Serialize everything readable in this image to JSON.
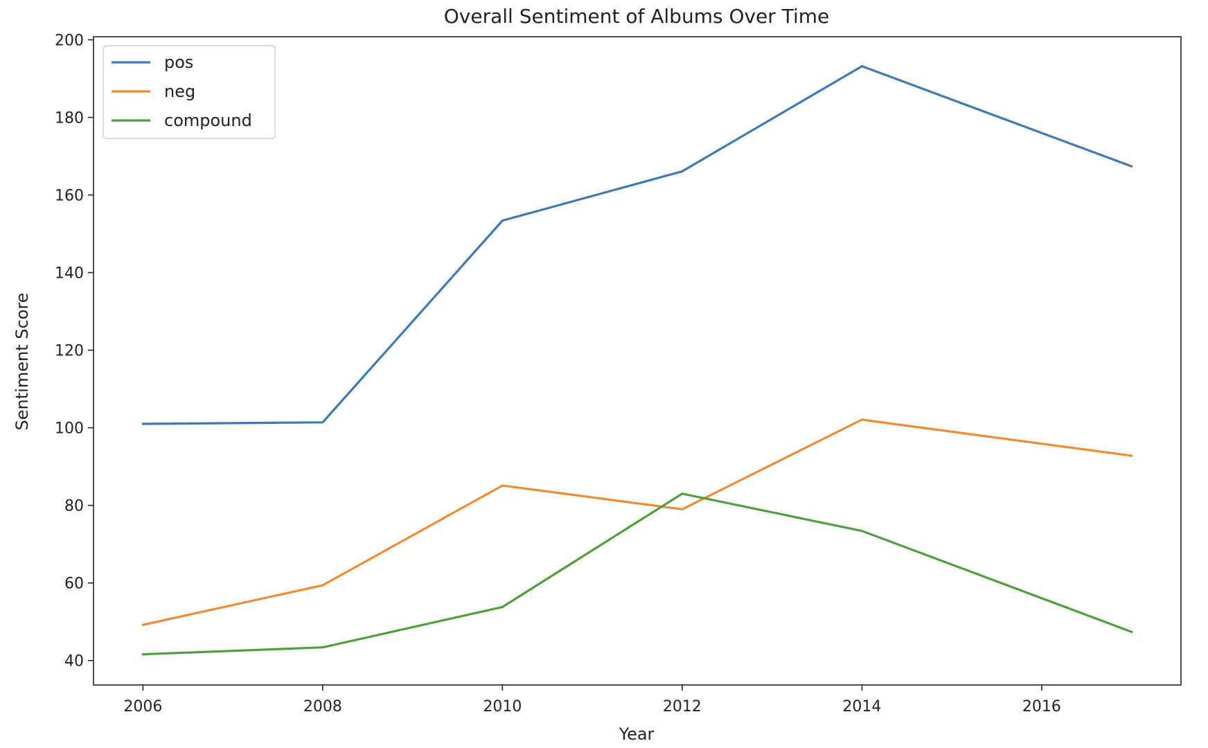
{
  "chart_data": {
    "type": "line",
    "title": "Overall Sentiment of Albums Over Time",
    "xlabel": "Year",
    "ylabel": "Sentiment Score",
    "x": [
      2006,
      2008,
      2010,
      2012,
      2014,
      2017
    ],
    "xticks": [
      2006,
      2008,
      2010,
      2012,
      2014,
      2016
    ],
    "yticks": [
      40,
      60,
      80,
      100,
      120,
      140,
      160,
      180,
      200
    ],
    "xlim": [
      2005.45,
      2017.55
    ],
    "ylim": [
      33.7,
      200.8
    ],
    "grid": false,
    "legend_position": "top-left",
    "series": [
      {
        "name": "pos",
        "color": "#3d79b3",
        "values": [
          101.0,
          101.4,
          153.4,
          166.1,
          193.2,
          167.4
        ]
      },
      {
        "name": "neg",
        "color": "#f08a34",
        "values": [
          49.2,
          59.4,
          85.1,
          79.0,
          102.1,
          92.8
        ]
      },
      {
        "name": "compound",
        "color": "#4f9e3c",
        "values": [
          41.6,
          43.4,
          53.8,
          83.0,
          73.4,
          47.4
        ]
      }
    ]
  }
}
